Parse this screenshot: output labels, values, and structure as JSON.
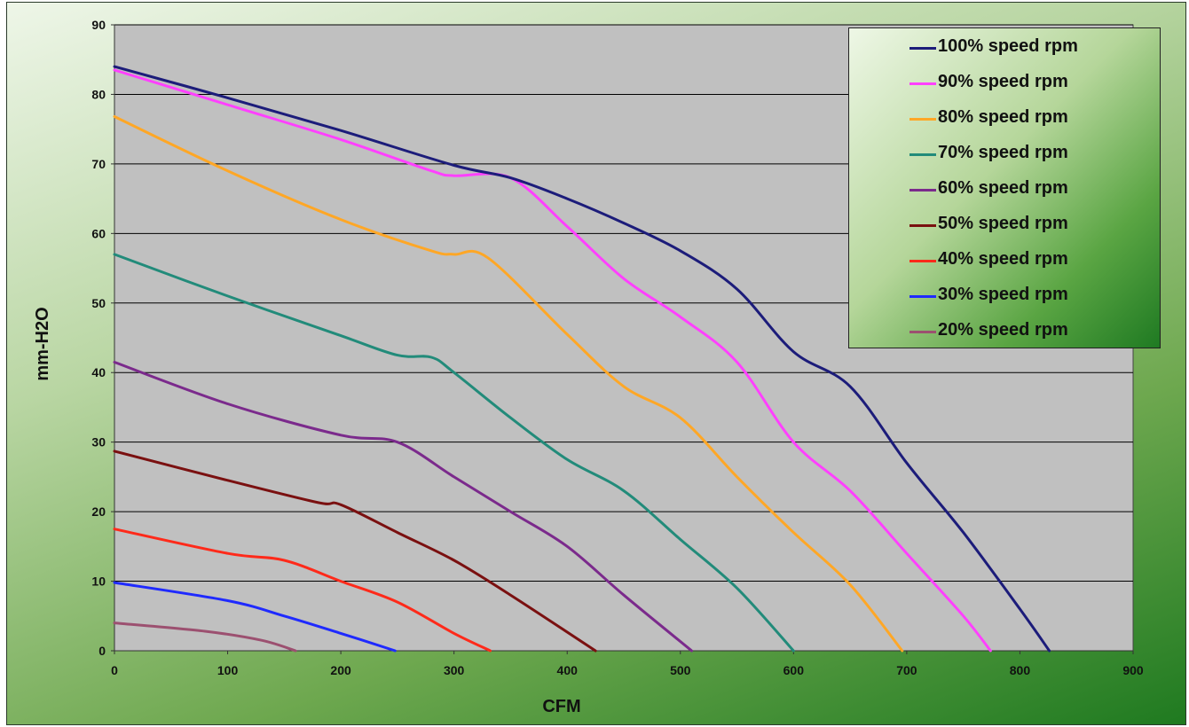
{
  "chart_data": {
    "type": "line",
    "xlabel": "CFM",
    "ylabel": "mm-H2O",
    "xlim": [
      0,
      900
    ],
    "ylim": [
      0,
      90
    ],
    "x_ticks": [
      0,
      100,
      200,
      300,
      400,
      500,
      600,
      700,
      800,
      900
    ],
    "y_ticks": [
      0,
      10,
      20,
      30,
      40,
      50,
      60,
      70,
      80,
      90
    ],
    "grid": "horizontal",
    "legend_position": "top-right",
    "plot_background": "#c0c0c0",
    "series": [
      {
        "name": "100% speed rpm",
        "color": "#1c1c7a",
        "points": [
          [
            0,
            84
          ],
          [
            100,
            79.5
          ],
          [
            200,
            74.8
          ],
          [
            300,
            69.8
          ],
          [
            350,
            68
          ],
          [
            400,
            65
          ],
          [
            450,
            61.5
          ],
          [
            500,
            57.5
          ],
          [
            550,
            52
          ],
          [
            600,
            43
          ],
          [
            650,
            38
          ],
          [
            700,
            27
          ],
          [
            750,
            17
          ],
          [
            800,
            6
          ],
          [
            826,
            0
          ]
        ]
      },
      {
        "name": "90% speed rpm",
        "color": "#ff40ff",
        "points": [
          [
            0,
            83.5
          ],
          [
            100,
            78.5
          ],
          [
            200,
            73.5
          ],
          [
            280,
            69
          ],
          [
            300,
            68.3
          ],
          [
            350,
            68
          ],
          [
            400,
            61
          ],
          [
            450,
            53.5
          ],
          [
            500,
            48
          ],
          [
            550,
            41.5
          ],
          [
            600,
            30
          ],
          [
            650,
            23
          ],
          [
            700,
            14
          ],
          [
            750,
            5
          ],
          [
            774,
            0
          ]
        ]
      },
      {
        "name": "80% speed rpm",
        "color": "#ffa726",
        "points": [
          [
            0,
            76.8
          ],
          [
            100,
            69
          ],
          [
            200,
            62
          ],
          [
            280,
            57.5
          ],
          [
            300,
            57
          ],
          [
            330,
            56.5
          ],
          [
            400,
            45.5
          ],
          [
            450,
            38
          ],
          [
            500,
            33.5
          ],
          [
            550,
            25
          ],
          [
            600,
            17
          ],
          [
            650,
            9.5
          ],
          [
            696,
            0
          ]
        ]
      },
      {
        "name": "70% speed rpm",
        "color": "#228b7a",
        "points": [
          [
            0,
            57
          ],
          [
            100,
            51
          ],
          [
            200,
            45.3
          ],
          [
            250,
            42.5
          ],
          [
            280,
            42.2
          ],
          [
            300,
            40
          ],
          [
            350,
            33.5
          ],
          [
            400,
            27.5
          ],
          [
            450,
            23
          ],
          [
            500,
            16
          ],
          [
            550,
            9
          ],
          [
            600,
            0
          ]
        ]
      },
      {
        "name": "60% speed rpm",
        "color": "#7b2a8c",
        "points": [
          [
            0,
            41.5
          ],
          [
            100,
            35.5
          ],
          [
            200,
            31
          ],
          [
            250,
            30
          ],
          [
            300,
            25
          ],
          [
            350,
            20
          ],
          [
            400,
            15
          ],
          [
            450,
            8
          ],
          [
            510,
            0
          ]
        ]
      },
      {
        "name": "50% speed rpm",
        "color": "#7a1010",
        "points": [
          [
            0,
            28.7
          ],
          [
            100,
            24.5
          ],
          [
            180,
            21.3
          ],
          [
            200,
            21
          ],
          [
            250,
            17
          ],
          [
            300,
            13
          ],
          [
            350,
            8
          ],
          [
            425,
            0
          ]
        ]
      },
      {
        "name": "40% speed rpm",
        "color": "#ff2a1a",
        "points": [
          [
            0,
            17.5
          ],
          [
            100,
            14
          ],
          [
            150,
            13
          ],
          [
            200,
            10
          ],
          [
            250,
            7
          ],
          [
            300,
            2.5
          ],
          [
            332,
            0
          ]
        ]
      },
      {
        "name": "30% speed rpm",
        "color": "#1f2aff",
        "points": [
          [
            0,
            9.8
          ],
          [
            100,
            7.2
          ],
          [
            150,
            5
          ],
          [
            200,
            2.5
          ],
          [
            248,
            0
          ]
        ]
      },
      {
        "name": "20% speed rpm",
        "color": "#9c5070",
        "points": [
          [
            0,
            4
          ],
          [
            80,
            2.8
          ],
          [
            130,
            1.5
          ],
          [
            160,
            0
          ]
        ]
      }
    ]
  }
}
